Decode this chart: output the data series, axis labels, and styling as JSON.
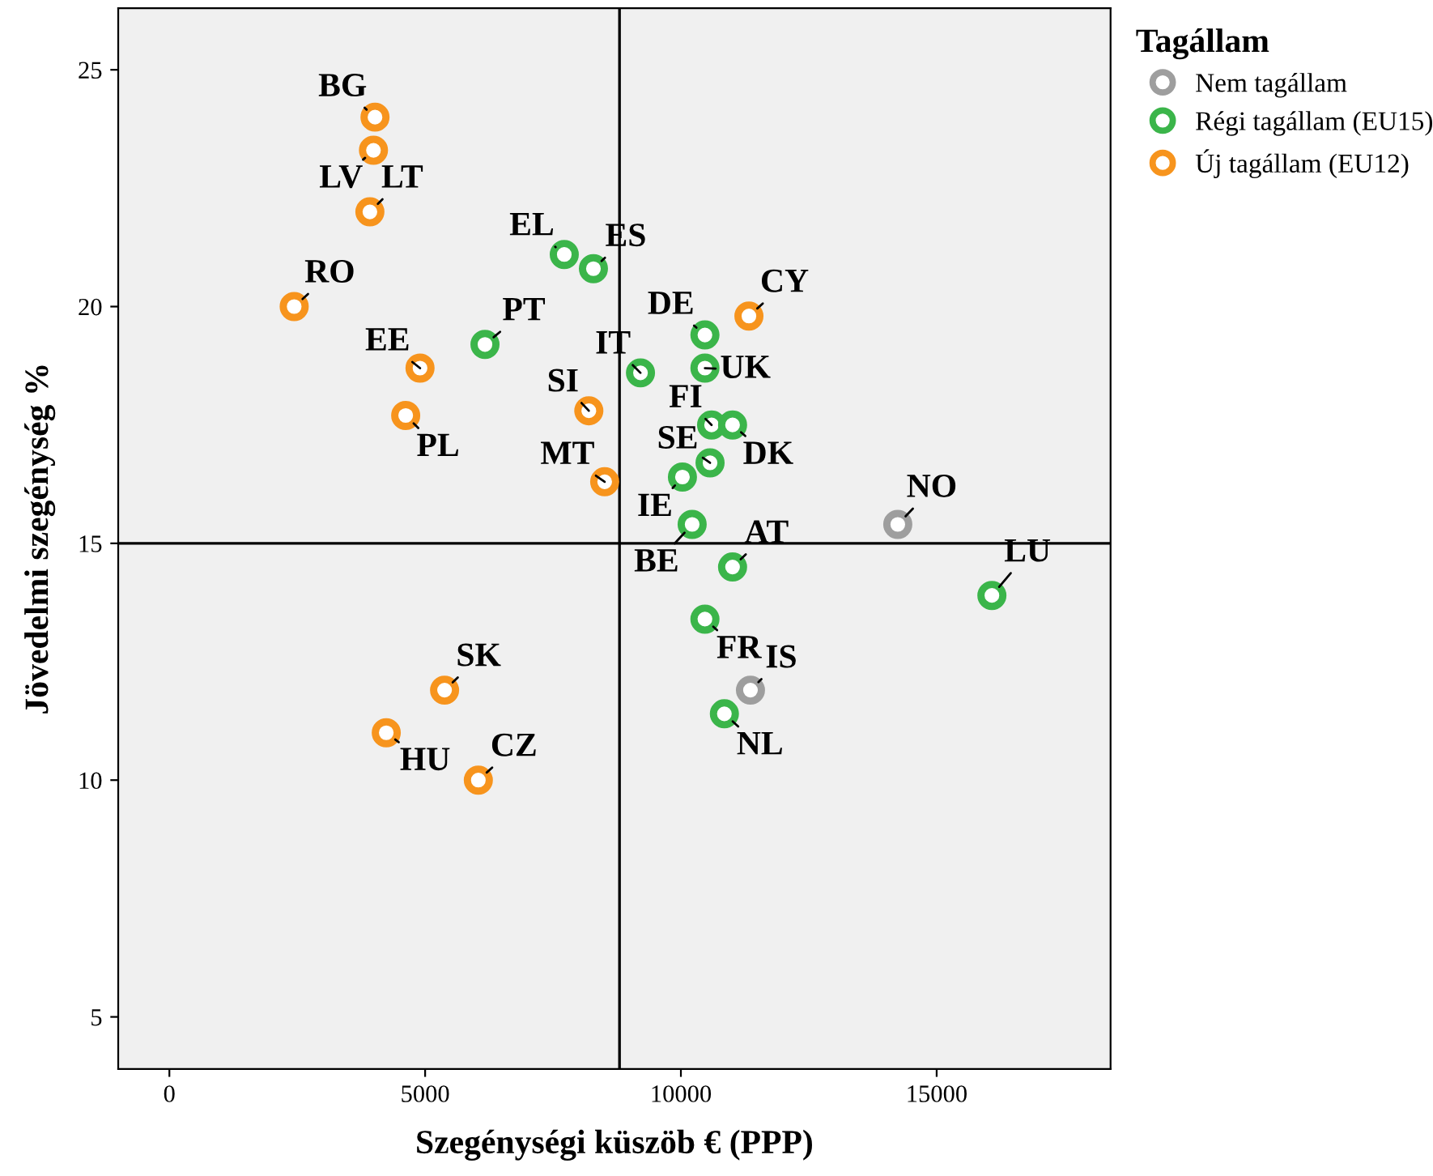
{
  "chart_data": {
    "type": "scatter",
    "xlabel": "Szegénységi küszöb € (PPP)",
    "ylabel": "Jövedelmi szegénység %",
    "legend_title": "Tagállam",
    "xlim": [
      -1000,
      18400
    ],
    "ylim": [
      3.9,
      26.3
    ],
    "xticks": [
      0,
      5000,
      10000,
      15000
    ],
    "yticks": [
      5,
      10,
      15,
      20,
      25
    ],
    "grid": false,
    "legend": "top right",
    "marker": "circle",
    "series": [
      {
        "name": "Nem tagállam",
        "color": "#9e9e9e",
        "x": [
          14240,
          11360
        ],
        "values": [
          15.4,
          11.9
        ]
      },
      {
        "name": "Régi tagállam (EU15)",
        "color": "#3bb54a",
        "x": [
          7720,
          8290,
          6170,
          9210,
          10470,
          10470,
          10600,
          11010,
          10570,
          10030,
          10220,
          11010,
          10470,
          10850,
          16080
        ],
        "values": [
          21.1,
          20.8,
          19.2,
          18.6,
          19.4,
          18.7,
          17.5,
          17.5,
          16.7,
          16.4,
          15.4,
          14.5,
          13.4,
          11.4,
          13.9
        ]
      },
      {
        "name": "Új tagállam (EU12)",
        "color": "#f7941d",
        "x": [
          4020,
          3990,
          3920,
          2440,
          4900,
          4620,
          8200,
          8510,
          11330,
          5380,
          4240,
          6040
        ],
        "values": [
          24.0,
          23.3,
          22.0,
          20.0,
          18.7,
          17.7,
          17.8,
          16.3,
          19.8,
          11.9,
          11.0,
          10.0
        ]
      }
    ],
    "annotations": [
      {
        "text": "BG",
        "x": 4020,
        "y": 24.0
      },
      {
        "text": "LV",
        "x": 3990,
        "y": 23.3
      },
      {
        "text": "LT",
        "x": 3920,
        "y": 22.0
      },
      {
        "text": "RO",
        "x": 2440,
        "y": 20.0
      },
      {
        "text": "EE",
        "x": 4900,
        "y": 18.7
      },
      {
        "text": "PL",
        "x": 4620,
        "y": 17.7
      },
      {
        "text": "SI",
        "x": 8200,
        "y": 17.8
      },
      {
        "text": "MT",
        "x": 8510,
        "y": 16.3
      },
      {
        "text": "CY",
        "x": 11330,
        "y": 19.8
      },
      {
        "text": "SK",
        "x": 5380,
        "y": 11.9
      },
      {
        "text": "HU",
        "x": 4240,
        "y": 11.0
      },
      {
        "text": "CZ",
        "x": 6040,
        "y": 10.0
      },
      {
        "text": "EL",
        "x": 7720,
        "y": 21.1
      },
      {
        "text": "ES",
        "x": 8290,
        "y": 20.8
      },
      {
        "text": "PT",
        "x": 6170,
        "y": 19.2
      },
      {
        "text": "IT",
        "x": 9210,
        "y": 18.6
      },
      {
        "text": "DE",
        "x": 10470,
        "y": 19.4
      },
      {
        "text": "UK",
        "x": 10470,
        "y": 18.7
      },
      {
        "text": "FI",
        "x": 10600,
        "y": 17.5
      },
      {
        "text": "DK",
        "x": 11010,
        "y": 17.5
      },
      {
        "text": "SE",
        "x": 10570,
        "y": 16.7
      },
      {
        "text": "IE",
        "x": 10030,
        "y": 16.4
      },
      {
        "text": "BE",
        "x": 10220,
        "y": 15.4
      },
      {
        "text": "AT",
        "x": 11010,
        "y": 14.5
      },
      {
        "text": "FR",
        "x": 10470,
        "y": 13.4
      },
      {
        "text": "NL",
        "x": 10850,
        "y": 11.4
      },
      {
        "text": "LU",
        "x": 16080,
        "y": 13.9
      },
      {
        "text": "NO",
        "x": 14240,
        "y": 15.4
      },
      {
        "text": "IS",
        "x": 11360,
        "y": 11.9
      }
    ],
    "ref_lines": [
      {
        "axis": "x",
        "value": 8800,
        "color": "#000000"
      },
      {
        "axis": "y",
        "value": 15,
        "color": "#000000"
      }
    ]
  }
}
